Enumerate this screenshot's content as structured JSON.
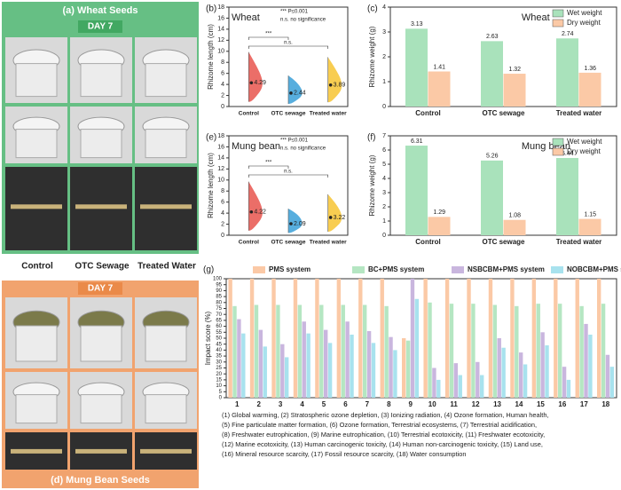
{
  "photo_panel": {
    "top_title": "(a) Wheat Seeds",
    "top_day": "DAY 7",
    "labels": [
      "Control",
      "OTC Sewage",
      "Treated Water"
    ],
    "bottom_day": "DAY 7",
    "bottom_title": "(d) Mung Bean Seeds"
  },
  "chart_data": [
    {
      "type": "violin",
      "panel": "(b)",
      "title": "Wheat",
      "ylabel": "Rhizome length (cm)",
      "categories": [
        "Control",
        "OTC sewage",
        "Treated water"
      ],
      "values": [
        4.29,
        2.44,
        3.89
      ],
      "colors": [
        "#e8554e",
        "#3aa0d8",
        "#f7c433"
      ],
      "annotations": [
        "*** P≤0.001",
        "n.s. no significance"
      ],
      "brackets": [
        "***",
        "n.s."
      ],
      "ylim": [
        0,
        18
      ],
      "yticks": [
        0,
        2,
        4,
        6,
        8,
        10,
        12,
        14,
        16,
        18
      ]
    },
    {
      "type": "bar",
      "panel": "(c)",
      "title": "Wheat",
      "ylabel": "Rhizome weight (g)",
      "categories": [
        "Control",
        "OTC sewage",
        "Treated water"
      ],
      "series": [
        {
          "name": "Wet weight",
          "color": "#a9e2bb",
          "values": [
            3.13,
            2.63,
            2.74
          ]
        },
        {
          "name": "Dry weight",
          "color": "#fbc9a6",
          "values": [
            1.41,
            1.32,
            1.36
          ]
        }
      ],
      "show_values": true,
      "legend": "upper right",
      "ylim": [
        0,
        4
      ],
      "yticks": [
        0,
        1,
        2,
        3,
        4
      ]
    },
    {
      "type": "violin",
      "panel": "(e)",
      "title": "Mung bean",
      "ylabel": "Rhizome length (cm)",
      "categories": [
        "Control",
        "OTC sewage",
        "Treated water"
      ],
      "values": [
        4.22,
        2.09,
        3.22
      ],
      "colors": [
        "#e8554e",
        "#3aa0d8",
        "#f7c433"
      ],
      "annotations": [
        "*** P≤0.001",
        "n.s. no significance"
      ],
      "brackets": [
        "***",
        "n.s."
      ],
      "ylim": [
        0,
        18
      ],
      "yticks": [
        0,
        2,
        4,
        6,
        8,
        10,
        12,
        14,
        16,
        18
      ]
    },
    {
      "type": "bar",
      "panel": "(f)",
      "title": "Mung bean",
      "ylabel": "Rhizome weight (g)",
      "categories": [
        "Control",
        "OTC sewage",
        "Treated water"
      ],
      "series": [
        {
          "name": "Wet weight",
          "color": "#a9e2bb",
          "values": [
            6.31,
            5.26,
            5.44
          ]
        },
        {
          "name": "Dry weight",
          "color": "#fbc9a6",
          "values": [
            1.29,
            1.08,
            1.15
          ]
        }
      ],
      "show_values": true,
      "legend": "upper right",
      "ylim": [
        0,
        7
      ],
      "yticks": [
        0,
        1,
        2,
        3,
        4,
        5,
        6,
        7
      ]
    },
    {
      "type": "bar",
      "panel": "(g)",
      "ylabel": "Impact score (%)",
      "categories": [
        "1",
        "2",
        "3",
        "4",
        "5",
        "6",
        "7",
        "8",
        "9",
        "10",
        "11",
        "12",
        "13",
        "14",
        "15",
        "16",
        "17",
        "18"
      ],
      "series": [
        {
          "name": "PMS system",
          "color": "#fbc9a6",
          "values": [
            100,
            100,
            100,
            100,
            100,
            100,
            100,
            100,
            50,
            100,
            100,
            100,
            100,
            100,
            100,
            100,
            100,
            100
          ]
        },
        {
          "name": "BC+PMS system",
          "color": "#b5e6c2",
          "values": [
            77,
            78,
            78,
            78,
            78,
            78,
            78,
            77,
            48,
            80,
            79,
            79,
            78,
            77,
            79,
            79,
            77,
            79
          ]
        },
        {
          "name": "NSBCBM+PMS system",
          "color": "#c9b6de",
          "values": [
            66,
            57,
            45,
            64,
            57,
            64,
            56,
            51,
            100,
            25,
            29,
            30,
            50,
            38,
            55,
            26,
            62,
            36
          ]
        },
        {
          "name": "NOBCBM+PMS system",
          "color": "#a8e2ee",
          "values": [
            54,
            43,
            34,
            54,
            46,
            53,
            46,
            40,
            83,
            15,
            19,
            19,
            42,
            28,
            44,
            15,
            53,
            26
          ]
        }
      ],
      "show_values": false,
      "legend": "top",
      "ylim": [
        0,
        100
      ],
      "yticks": [
        0,
        5,
        10,
        15,
        20,
        25,
        30,
        35,
        40,
        45,
        50,
        55,
        60,
        65,
        70,
        75,
        80,
        85,
        90,
        95,
        100
      ],
      "notes": [
        "(1) Global warming, (2) Stratospheric ozone depletion, (3) Ionizing radiation, (4) Ozone formation, Human health,",
        "(5) Fine particulate matter formation, (6) Ozone formation, Terrestrial ecosystems, (7) Terrestrial acidification,",
        "(8) Freshwater eutrophication, (9) Marine eutrophication, (10) Terrestrial ecotoxicity, (11) Freshwater ecotoxicity,",
        "(12) Marine ecotoxicity, (13) Human carcinogenic toxicity, (14) Human non-carcinogenic toxicity, (15) Land use,",
        "(16) Mineral resource scarcity, (17) Fossil resource scarcity, (18) Water consumption"
      ]
    }
  ]
}
